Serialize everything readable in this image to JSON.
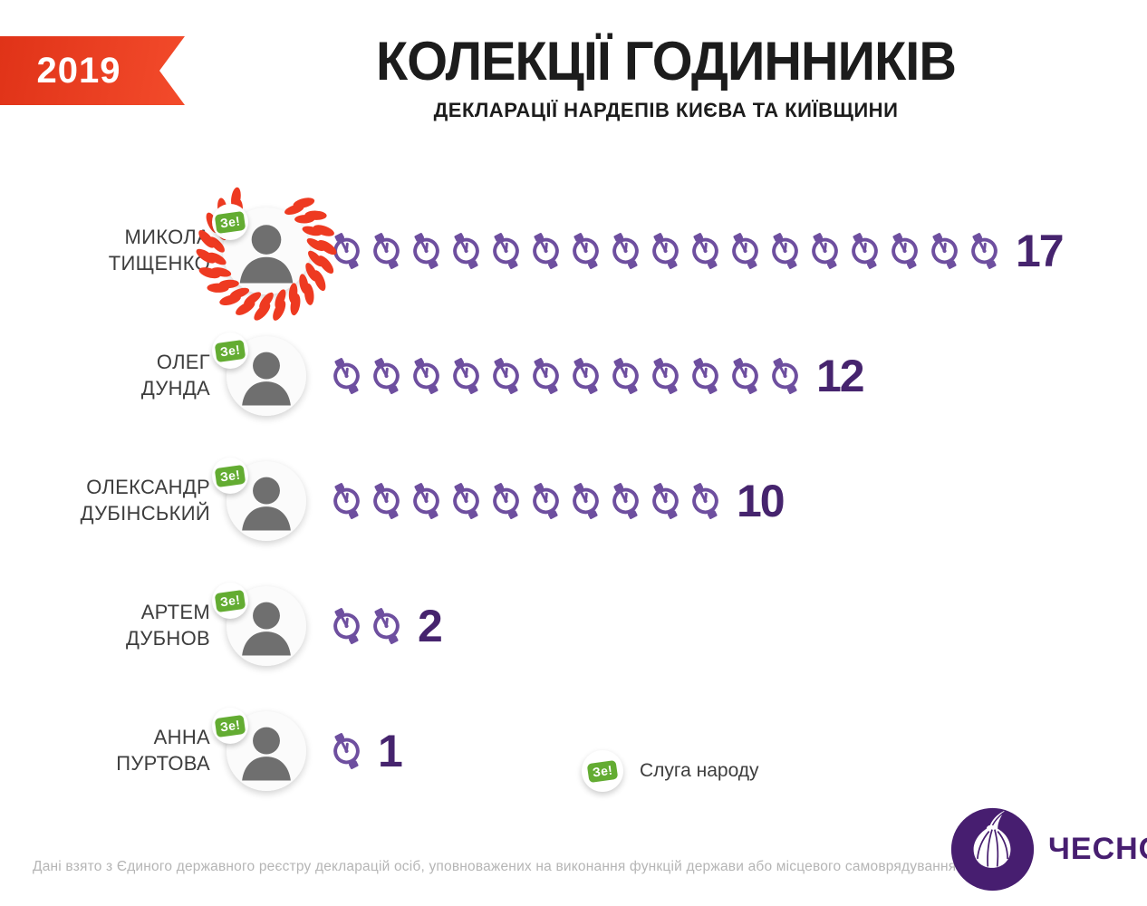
{
  "header": {
    "year": "2019",
    "title": "КОЛЕКЦІЇ ГОДИННИКІВ",
    "subtitle": "ДЕКЛАРАЦІЇ НАРДЕПІВ КИЄВА ТА КИЇВЩИНИ"
  },
  "chart_data": {
    "type": "bar",
    "variant": "pictogram",
    "icon": "watch",
    "title": "КОЛЕКЦІЇ ГОДИННИКІВ",
    "subtitle": "ДЕКЛАРАЦІЇ НАРДЕПІВ КИЄВА ТА КИЇВЩИНИ",
    "year": "2019",
    "categories": [
      "МИКОЛА ТИЩЕНКО",
      "ОЛЕГ ДУНДА",
      "ОЛЕКСАНДР ДУБІНСЬКИЙ",
      "АРТЕМ ДУБНОВ",
      "АННА ПУРТОВА"
    ],
    "values": [
      17,
      12,
      10,
      2,
      1
    ],
    "rows": [
      {
        "first": "МИКОЛА",
        "last": "ТИЩЕНКО",
        "count": 17,
        "wreath": true,
        "party": "Зе!"
      },
      {
        "first": "ОЛЕГ",
        "last": "ДУНДА",
        "count": 12,
        "wreath": false,
        "party": "Зе!"
      },
      {
        "first": "ОЛЕКСАНДР",
        "last": "ДУБІНСЬКИЙ",
        "count": 10,
        "wreath": false,
        "party": "Зе!"
      },
      {
        "first": "АРТЕМ",
        "last": "ДУБНОВ",
        "count": 2,
        "wreath": false,
        "party": "Зе!"
      },
      {
        "first": "АННА",
        "last": "ПУРТОВА",
        "count": 1,
        "wreath": false,
        "party": "Зе!"
      }
    ],
    "legend": {
      "badge": "Зе!",
      "label": "Слуга народу"
    },
    "legend_position": "bottom-center"
  },
  "footer": {
    "source": "Дані взято з Єдиного державного реєстру декларацій осіб, уповноважених на виконання функцій держави або місцевого самоврядування."
  },
  "logo": {
    "text": "ЧЕСНО"
  },
  "colors": {
    "accent_red": "#ee3a21",
    "watch_purple": "#6e4f9f",
    "number_purple": "#46246e",
    "badge_green": "#63ac32",
    "logo_purple": "#471e70"
  }
}
